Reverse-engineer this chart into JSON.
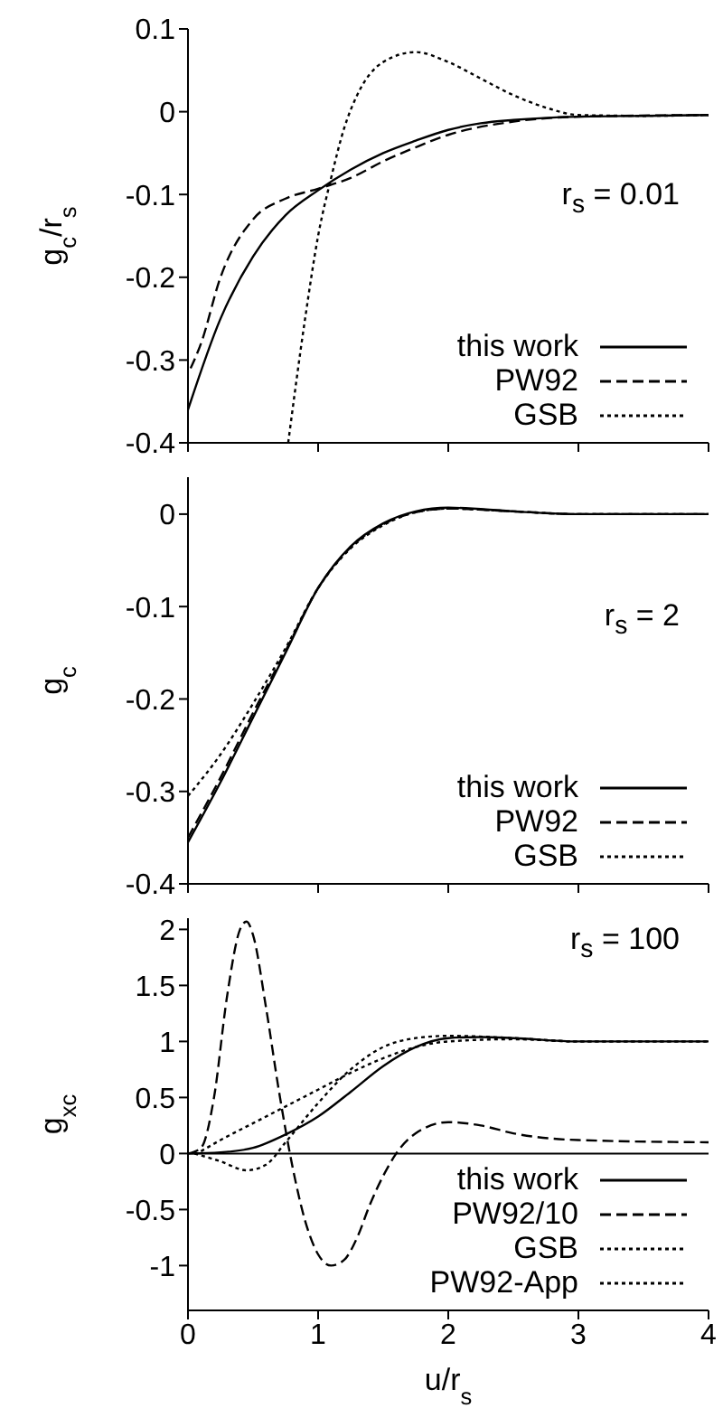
{
  "chart_data": [
    {
      "type": "line",
      "ylabel": "g$_{c}$/r$_{s}$",
      "annotations": [
        "r$_{s}$ = 0.01"
      ],
      "xlim": [
        0,
        4
      ],
      "xticks": [
        0,
        1,
        2,
        3,
        4
      ],
      "ylim": [
        -0.4,
        0.1
      ],
      "yticks": [
        -0.4,
        -0.3,
        -0.2,
        -0.1,
        0,
        0.1
      ],
      "tick_labels": "y",
      "legend": "bottom right",
      "series": [
        {
          "name": "this work",
          "color": "#000000",
          "line_style": "solid",
          "x": [
            0,
            0.25,
            0.5,
            0.75,
            1.0,
            1.25,
            1.5,
            1.75,
            2,
            2.25,
            2.5,
            3,
            3.5,
            4
          ],
          "values": [
            -0.36,
            -0.25,
            -0.175,
            -0.125,
            -0.095,
            -0.07,
            -0.05,
            -0.035,
            -0.022,
            -0.014,
            -0.01,
            -0.006,
            -0.005,
            -0.004
          ]
        },
        {
          "name": "PW92",
          "color": "#000000",
          "line_style": "dashed",
          "x": [
            0.02,
            0.1,
            0.25,
            0.5,
            0.75,
            1,
            1.25,
            1.5,
            1.75,
            2,
            2.5,
            3,
            4
          ],
          "values": [
            -0.31,
            -0.28,
            -0.2,
            -0.13,
            -0.105,
            -0.093,
            -0.08,
            -0.06,
            -0.043,
            -0.028,
            -0.012,
            -0.006,
            -0.004
          ]
        },
        {
          "name": "GSB",
          "color": "#000000",
          "line_style": "dotted",
          "x": [
            0.77,
            0.9,
            1.0,
            1.1,
            1.2,
            1.3,
            1.5,
            1.75,
            2,
            2.25,
            2.5,
            2.75,
            3,
            3.5,
            4
          ],
          "values": [
            -0.4,
            -0.25,
            -0.15,
            -0.08,
            -0.02,
            0.02,
            0.06,
            0.072,
            0.06,
            0.04,
            0.02,
            0.005,
            -0.004,
            -0.005,
            -0.004
          ]
        }
      ]
    },
    {
      "type": "line",
      "ylabel": "g$_{c}$",
      "annotations": [
        "r$_{s}$ = 2"
      ],
      "xlim": [
        0,
        4
      ],
      "xticks": [
        0,
        1,
        2,
        3,
        4
      ],
      "ylim": [
        -0.4,
        0.04
      ],
      "yticks": [
        -0.4,
        -0.3,
        -0.2,
        -0.1,
        0
      ],
      "tick_labels": "y",
      "legend": "bottom right",
      "series": [
        {
          "name": "this work",
          "color": "#000000",
          "line_style": "solid",
          "x": [
            0,
            0.25,
            0.5,
            0.75,
            1,
            1.25,
            1.5,
            1.75,
            2,
            2.5,
            3,
            4
          ],
          "values": [
            -0.355,
            -0.29,
            -0.22,
            -0.15,
            -0.08,
            -0.035,
            -0.01,
            0.003,
            0.007,
            0.003,
            0,
            0
          ]
        },
        {
          "name": "PW92",
          "color": "#000000",
          "line_style": "dashed",
          "x": [
            0,
            0.25,
            0.5,
            0.75,
            1,
            1.25,
            1.5,
            1.75,
            2,
            2.5,
            3,
            4
          ],
          "values": [
            -0.35,
            -0.285,
            -0.215,
            -0.148,
            -0.08,
            -0.036,
            -0.011,
            0.002,
            0.006,
            0.003,
            0,
            0
          ]
        },
        {
          "name": "GSB",
          "color": "#000000",
          "line_style": "dotted",
          "x": [
            0,
            0.25,
            0.5,
            0.75,
            1,
            1.25,
            1.5,
            1.75,
            2,
            2.5,
            3,
            4
          ],
          "values": [
            -0.305,
            -0.26,
            -0.205,
            -0.145,
            -0.08,
            -0.037,
            -0.012,
            0.002,
            0.006,
            0.003,
            0,
            0
          ]
        }
      ]
    },
    {
      "type": "line",
      "ylabel": "g$_{xc}$",
      "xlabel": "u/r$_{s}$",
      "annotations": [
        "r$_{s}$ = 100"
      ],
      "xlim": [
        0,
        4
      ],
      "xticks": [
        0,
        1,
        2,
        3,
        4
      ],
      "ylim": [
        -1.4,
        2.1
      ],
      "yticks": [
        -1,
        -0.5,
        0,
        0.5,
        1,
        1.5,
        2
      ],
      "legend": "bottom right",
      "ref_lines": [
        {
          "axis": "y",
          "value": 0,
          "color": "#000000",
          "line_style": "solid"
        }
      ],
      "series": [
        {
          "name": "this work",
          "color": "#000000",
          "line_style": "solid",
          "x": [
            0,
            0.25,
            0.5,
            0.75,
            1,
            1.25,
            1.5,
            1.75,
            2,
            2.25,
            2.5,
            3,
            4
          ],
          "values": [
            0,
            0.01,
            0.05,
            0.17,
            0.33,
            0.55,
            0.78,
            0.95,
            1.03,
            1.04,
            1.03,
            1.0,
            1.0
          ]
        },
        {
          "name": "PW92/10",
          "color": "#000000",
          "line_style": "dashed",
          "x": [
            0,
            0.1,
            0.2,
            0.3,
            0.4,
            0.45,
            0.5,
            0.6,
            0.7,
            0.8,
            0.9,
            1.0,
            1.1,
            1.2,
            1.3,
            1.4,
            1.5,
            1.6,
            1.75,
            2,
            2.25,
            2.5,
            3,
            4
          ],
          "values": [
            0,
            0.05,
            0.5,
            1.4,
            2.0,
            2.07,
            1.95,
            1.3,
            0.55,
            -0.1,
            -0.6,
            -0.9,
            -1.0,
            -0.95,
            -0.75,
            -0.45,
            -0.2,
            0.0,
            0.18,
            0.28,
            0.25,
            0.18,
            0.12,
            0.1
          ]
        },
        {
          "name": "GSB",
          "color": "#000000",
          "line_style": "dotted",
          "x": [
            0.05,
            0.25,
            0.45,
            0.6,
            0.75,
            1,
            1.25,
            1.5,
            1.75,
            2,
            2.5,
            3,
            4
          ],
          "values": [
            0,
            -0.07,
            -0.15,
            -0.1,
            0.1,
            0.45,
            0.75,
            0.95,
            1.03,
            1.05,
            1.03,
            1.0,
            1.0
          ]
        },
        {
          "name": "PW92-App",
          "color": "#000000",
          "line_style": "dotted",
          "x": [
            0.1,
            0.25,
            0.5,
            0.75,
            1,
            1.25,
            1.5,
            1.75,
            2,
            2.5,
            3,
            4
          ],
          "values": [
            0.02,
            0.12,
            0.27,
            0.42,
            0.57,
            0.72,
            0.85,
            0.95,
            1.0,
            1.02,
            1.0,
            1.0
          ]
        }
      ]
    }
  ]
}
